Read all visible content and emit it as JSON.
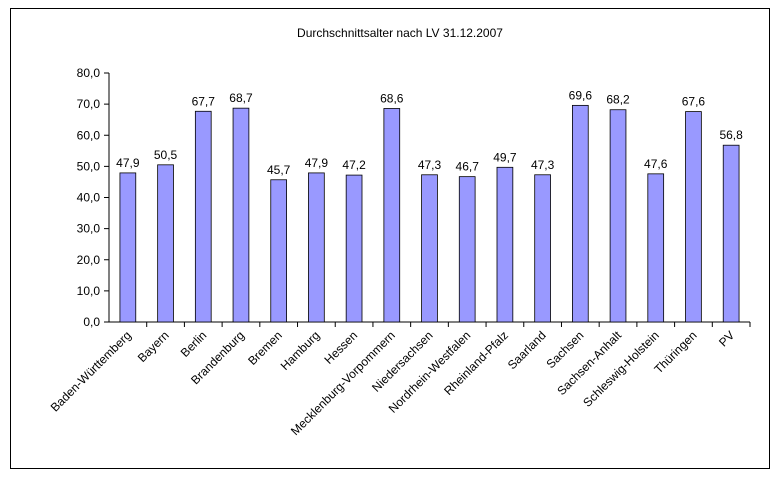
{
  "chart_data": {
    "type": "bar",
    "title": "Durchschnittsalter nach LV 31.12.2007",
    "categories": [
      "Baden-Württemberg",
      "Bayern",
      "Berlin",
      "Brandenburg",
      "Bremen",
      "Hamburg",
      "Hessen",
      "Mecklenburg-Vorpommern",
      "Niedersachsen",
      "Nordrhein-Westfalen",
      "Rheinland-Pfalz",
      "Saarland",
      "Sachsen",
      "Sachsen-Anhalt",
      "Schleswig-Holstein",
      "Thüringen",
      "PV"
    ],
    "values": [
      47.9,
      50.5,
      67.7,
      68.7,
      45.7,
      47.9,
      47.2,
      68.6,
      47.3,
      46.7,
      49.7,
      47.3,
      69.6,
      68.2,
      47.6,
      67.6,
      56.8
    ],
    "value_labels": [
      "47,9",
      "50,5",
      "67,7",
      "68,7",
      "45,7",
      "47,9",
      "47,2",
      "68,6",
      "47,3",
      "46,7",
      "49,7",
      "47,3",
      "69,6",
      "68,2",
      "47,6",
      "67,6",
      "56,8"
    ],
    "color": "#9999ff",
    "ylim": [
      0,
      80
    ],
    "yticks": [
      {
        "value": 0,
        "label": "0,0"
      },
      {
        "value": 10,
        "label": "10,0"
      },
      {
        "value": 20,
        "label": "20,0"
      },
      {
        "value": 30,
        "label": "30,0"
      },
      {
        "value": 40,
        "label": "40,0"
      },
      {
        "value": 50,
        "label": "50,0"
      },
      {
        "value": 60,
        "label": "60,0"
      },
      {
        "value": 70,
        "label": "70,0"
      },
      {
        "value": 80,
        "label": "80,0"
      }
    ],
    "grid": false
  }
}
